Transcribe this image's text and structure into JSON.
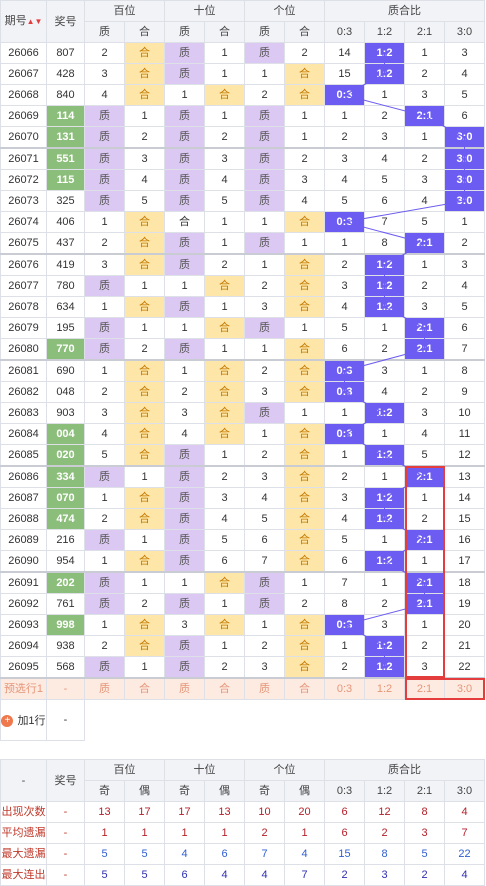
{
  "header": {
    "period_label": "期号",
    "prize_label": "奖号",
    "groups": [
      "百位",
      "十位",
      "个位",
      "质合比"
    ],
    "ratio_cols": [
      "0:3",
      "1:2",
      "2:1",
      "3:0"
    ],
    "sort_icon": "sort-arrows-icon"
  },
  "colors": {
    "prime": "#dcc9f3",
    "composite": "#fde6a8",
    "prize_highlight": "#8cbe7b",
    "ratio_highlight": "#6c5cf2",
    "red_box": "#e43d3d"
  },
  "rows": [
    {
      "period": "26066",
      "prize": "807",
      "pc": [
        [
          "2",
          "合"
        ],
        [
          "质",
          "1"
        ],
        [
          "质",
          "2"
        ]
      ],
      "r": [
        "14",
        "1:2",
        "1",
        "3"
      ],
      "hl": false,
      "rhl": 1
    },
    {
      "period": "26067",
      "prize": "428",
      "pc": [
        [
          "3",
          "合"
        ],
        [
          "质",
          "1"
        ],
        [
          "1",
          "合"
        ]
      ],
      "r": [
        "15",
        "1:2",
        "2",
        "4"
      ],
      "hl": false,
      "rhl": 1
    },
    {
      "period": "26068",
      "prize": "840",
      "pc": [
        [
          "4",
          "合"
        ],
        [
          "1",
          "合"
        ],
        [
          "2",
          "合"
        ]
      ],
      "r": [
        "0:3",
        "1",
        "3",
        "5"
      ],
      "hl": false,
      "rhl": 0
    },
    {
      "period": "26069",
      "prize": "114",
      "pc": [
        [
          "质",
          "1"
        ],
        [
          "质",
          "1"
        ],
        [
          "质",
          "1"
        ]
      ],
      "r": [
        "1",
        "2",
        "2:1",
        "6"
      ],
      "hl": true,
      "rhl": 2
    },
    {
      "period": "26070",
      "prize": "131",
      "pc": [
        [
          "质",
          "2"
        ],
        [
          "质",
          "2"
        ],
        [
          "质",
          "1"
        ]
      ],
      "r": [
        "2",
        "3",
        "1",
        "3:0"
      ],
      "hl": true,
      "rhl": 3
    },
    {
      "period": "26071",
      "prize": "551",
      "pc": [
        [
          "质",
          "3"
        ],
        [
          "质",
          "3"
        ],
        [
          "质",
          "2"
        ]
      ],
      "r": [
        "3",
        "4",
        "2",
        "3:0"
      ],
      "hl": true,
      "rhl": 3
    },
    {
      "period": "26072",
      "prize": "115",
      "pc": [
        [
          "质",
          "4"
        ],
        [
          "质",
          "4"
        ],
        [
          "质",
          "3"
        ]
      ],
      "r": [
        "4",
        "5",
        "3",
        "3:0"
      ],
      "hl": true,
      "rhl": 3
    },
    {
      "period": "26073",
      "prize": "325",
      "pc": [
        [
          "质",
          "5"
        ],
        [
          "质",
          "5"
        ],
        [
          "质",
          "4"
        ]
      ],
      "r": [
        "5",
        "6",
        "4",
        "3:0"
      ],
      "hl": false,
      "rhl": 3
    },
    {
      "period": "26074",
      "prize": "406",
      "pc": [
        [
          "1",
          "合"
        ],
        [
          "合",
          "1"
        ],
        [
          "1",
          "合"
        ]
      ],
      "r": [
        "0:3",
        "7",
        "5",
        "1"
      ],
      "hl": false,
      "rhl": 0
    },
    {
      "period": "26075",
      "prize": "437",
      "pc": [
        [
          "2",
          "合"
        ],
        [
          "质",
          "1"
        ],
        [
          "质",
          "1"
        ]
      ],
      "r": [
        "1",
        "8",
        "2:1",
        "2"
      ],
      "hl": false,
      "rhl": 2
    },
    {
      "period": "26076",
      "prize": "419",
      "pc": [
        [
          "3",
          "合"
        ],
        [
          "质",
          "2"
        ],
        [
          "1",
          "合"
        ]
      ],
      "r": [
        "2",
        "1:2",
        "1",
        "3"
      ],
      "hl": false,
      "rhl": 1
    },
    {
      "period": "26077",
      "prize": "780",
      "pc": [
        [
          "质",
          "1"
        ],
        [
          "1",
          "合"
        ],
        [
          "2",
          "合"
        ]
      ],
      "r": [
        "3",
        "1:2",
        "2",
        "4"
      ],
      "hl": false,
      "rhl": 1
    },
    {
      "period": "26078",
      "prize": "634",
      "pc": [
        [
          "1",
          "合"
        ],
        [
          "质",
          "1"
        ],
        [
          "3",
          "合"
        ]
      ],
      "r": [
        "4",
        "1:2",
        "3",
        "5"
      ],
      "hl": false,
      "rhl": 1
    },
    {
      "period": "26079",
      "prize": "195",
      "pc": [
        [
          "质",
          "1"
        ],
        [
          "1",
          "合"
        ],
        [
          "质",
          "1"
        ]
      ],
      "r": [
        "5",
        "1",
        "2:1",
        "6"
      ],
      "hl": false,
      "rhl": 2
    },
    {
      "period": "26080",
      "prize": "770",
      "pc": [
        [
          "质",
          "2"
        ],
        [
          "质",
          "1"
        ],
        [
          "1",
          "合"
        ]
      ],
      "r": [
        "6",
        "2",
        "2:1",
        "7"
      ],
      "hl": true,
      "rhl": 2
    },
    {
      "period": "26081",
      "prize": "690",
      "pc": [
        [
          "1",
          "合"
        ],
        [
          "1",
          "合"
        ],
        [
          "2",
          "合"
        ]
      ],
      "r": [
        "0:3",
        "3",
        "1",
        "8"
      ],
      "hl": false,
      "rhl": 0
    },
    {
      "period": "26082",
      "prize": "048",
      "pc": [
        [
          "2",
          "合"
        ],
        [
          "2",
          "合"
        ],
        [
          "3",
          "合"
        ]
      ],
      "r": [
        "0:3",
        "4",
        "2",
        "9"
      ],
      "hl": false,
      "rhl": 0
    },
    {
      "period": "26083",
      "prize": "903",
      "pc": [
        [
          "3",
          "合"
        ],
        [
          "3",
          "合"
        ],
        [
          "质",
          "1"
        ]
      ],
      "r": [
        "1",
        "1:2",
        "3",
        "10"
      ],
      "hl": false,
      "rhl": 1
    },
    {
      "period": "26084",
      "prize": "004",
      "pc": [
        [
          "4",
          "合"
        ],
        [
          "4",
          "合"
        ],
        [
          "1",
          "合"
        ]
      ],
      "r": [
        "0:3",
        "1",
        "4",
        "11"
      ],
      "hl": true,
      "rhl": 0
    },
    {
      "period": "26085",
      "prize": "020",
      "pc": [
        [
          "5",
          "合"
        ],
        [
          "质",
          "1"
        ],
        [
          "2",
          "合"
        ]
      ],
      "r": [
        "1",
        "1:2",
        "5",
        "12"
      ],
      "hl": true,
      "rhl": 1
    },
    {
      "period": "26086",
      "prize": "334",
      "pc": [
        [
          "质",
          "1"
        ],
        [
          "质",
          "2"
        ],
        [
          "3",
          "合"
        ]
      ],
      "r": [
        "2",
        "1",
        "2:1",
        "13"
      ],
      "hl": true,
      "rhl": 2
    },
    {
      "period": "26087",
      "prize": "070",
      "pc": [
        [
          "1",
          "合"
        ],
        [
          "质",
          "3"
        ],
        [
          "4",
          "合"
        ]
      ],
      "r": [
        "3",
        "1:2",
        "1",
        "14"
      ],
      "hl": true,
      "rhl": 1
    },
    {
      "period": "26088",
      "prize": "474",
      "pc": [
        [
          "2",
          "合"
        ],
        [
          "质",
          "4"
        ],
        [
          "5",
          "合"
        ]
      ],
      "r": [
        "4",
        "1:2",
        "2",
        "15"
      ],
      "hl": true,
      "rhl": 1
    },
    {
      "period": "26089",
      "prize": "216",
      "pc": [
        [
          "质",
          "1"
        ],
        [
          "质",
          "5"
        ],
        [
          "6",
          "合"
        ]
      ],
      "r": [
        "5",
        "1",
        "2:1",
        "16"
      ],
      "hl": false,
      "rhl": 2
    },
    {
      "period": "26090",
      "prize": "954",
      "pc": [
        [
          "1",
          "合"
        ],
        [
          "质",
          "6"
        ],
        [
          "7",
          "合"
        ]
      ],
      "r": [
        "6",
        "1:2",
        "1",
        "17"
      ],
      "hl": false,
      "rhl": 1
    },
    {
      "period": "26091",
      "prize": "202",
      "pc": [
        [
          "质",
          "1"
        ],
        [
          "1",
          "合"
        ],
        [
          "质",
          "1"
        ]
      ],
      "r": [
        "7",
        "1",
        "2:1",
        "18"
      ],
      "hl": true,
      "rhl": 2
    },
    {
      "period": "26092",
      "prize": "761",
      "pc": [
        [
          "质",
          "2"
        ],
        [
          "质",
          "1"
        ],
        [
          "质",
          "2"
        ]
      ],
      "r": [
        "8",
        "2",
        "2:1",
        "19"
      ],
      "hl": false,
      "rhl": 2
    },
    {
      "period": "26093",
      "prize": "998",
      "pc": [
        [
          "1",
          "合"
        ],
        [
          "3",
          "合"
        ],
        [
          "1",
          "合"
        ]
      ],
      "r": [
        "0:3",
        "3",
        "1",
        "20"
      ],
      "hl": true,
      "rhl": 0
    },
    {
      "period": "26094",
      "prize": "938",
      "pc": [
        [
          "2",
          "合"
        ],
        [
          "质",
          "1"
        ],
        [
          "2",
          "合"
        ]
      ],
      "r": [
        "1",
        "1:2",
        "2",
        "21"
      ],
      "hl": false,
      "rhl": 1
    },
    {
      "period": "26095",
      "prize": "568",
      "pc": [
        [
          "质",
          "1"
        ],
        [
          "质",
          "2"
        ],
        [
          "3",
          "合"
        ]
      ],
      "r": [
        "2",
        "1:2",
        "3",
        "22"
      ],
      "hl": false,
      "rhl": 1
    }
  ],
  "predict_row": {
    "label": "预选行1",
    "prize": "-",
    "cells": [
      "质",
      "合",
      "质",
      "合",
      "质",
      "合"
    ],
    "ratios": [
      "0:3",
      "1:2",
      "2:1",
      "3:0"
    ]
  },
  "add_row": {
    "label": "加1行",
    "value": "-",
    "icon": "plus-circle-icon"
  },
  "stats_header": {
    "dash": "-",
    "prize_label": "奖号",
    "sub": [
      "奇",
      "偶",
      "奇",
      "偶",
      "奇",
      "偶"
    ]
  },
  "stats": [
    {
      "label": "出现次数",
      "dash": "-",
      "vals": [
        "13",
        "17",
        "17",
        "13",
        "10",
        "20",
        "6",
        "12",
        "8",
        "4"
      ],
      "cls": "v1"
    },
    {
      "label": "平均遗漏",
      "dash": "-",
      "vals": [
        "1",
        "1",
        "1",
        "1",
        "2",
        "1",
        "6",
        "2",
        "3",
        "7"
      ],
      "cls": "v1"
    },
    {
      "label": "最大遗漏",
      "dash": "-",
      "vals": [
        "5",
        "5",
        "4",
        "6",
        "7",
        "4",
        "15",
        "8",
        "5",
        "22"
      ],
      "cls": "v2"
    },
    {
      "label": "最大连出",
      "dash": "-",
      "vals": [
        "5",
        "5",
        "6",
        "4",
        "4",
        "7",
        "2",
        "3",
        "2",
        "4"
      ],
      "cls": "v3"
    }
  ]
}
